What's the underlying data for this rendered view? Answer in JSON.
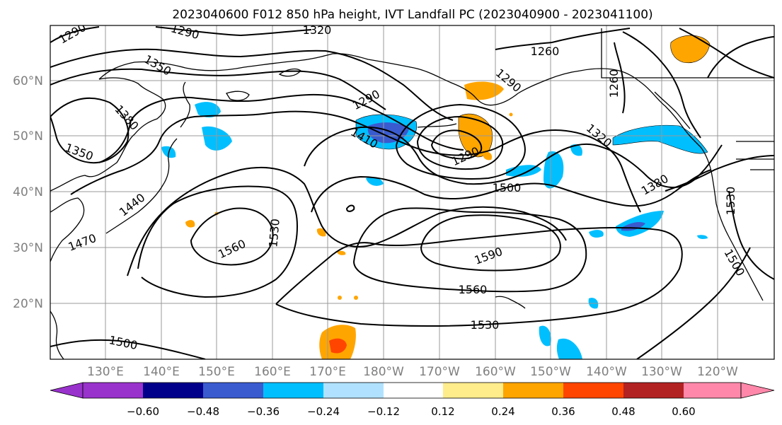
{
  "title": "2023040600 F012 850 hPa height, IVT Landfall PC (2023040900 - 2023041100)",
  "map": {
    "lat_labels": [
      "60°N",
      "50°N",
      "40°N",
      "30°N",
      "20°N"
    ],
    "lon_labels": [
      "130°E",
      "140°E",
      "150°E",
      "160°E",
      "170°E",
      "180°W",
      "170°W",
      "160°W",
      "150°W",
      "140°W",
      "130°W",
      "120°W"
    ],
    "contour_labels": [
      "1290",
      "1290",
      "1320",
      "1260",
      "1350",
      "1260",
      "1290",
      "1290",
      "1380",
      "1410",
      "1320",
      "1350",
      "1290",
      "1500",
      "1380",
      "1440",
      "1530",
      "1530",
      "1470",
      "1560",
      "1590",
      "1560",
      "1500",
      "1530",
      "1500"
    ],
    "contour_color": "#000000",
    "grid": true
  },
  "colorbar": {
    "ticks": [
      "−0.60",
      "−0.48",
      "−0.36",
      "−0.24",
      "−0.12",
      "0.12",
      "0.24",
      "0.36",
      "0.48",
      "0.60"
    ],
    "colors": [
      "#9932cc",
      "#00008b",
      "#3a5bcf",
      "#00bfff",
      "#b0e2ff",
      "#ffffff",
      "#ffec8b",
      "#ffa500",
      "#ff4500",
      "#b22222",
      "#ff88aa"
    ],
    "extend": "both"
  }
}
